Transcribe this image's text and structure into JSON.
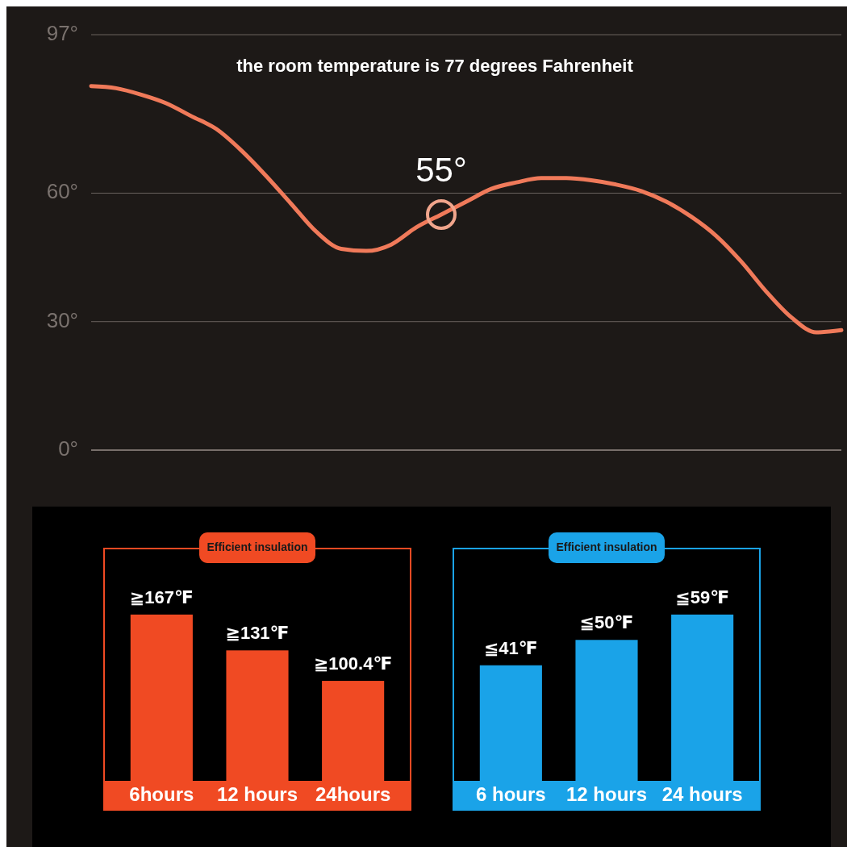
{
  "chart_data": [
    {
      "type": "line",
      "title": "the room temperature is 77 degrees Fahrenheit",
      "categories": [
        null,
        null,
        null,
        null,
        null,
        null,
        null,
        null,
        null,
        null,
        null,
        null,
        null,
        null,
        null,
        null,
        null,
        null,
        null,
        null,
        null,
        null,
        null,
        null,
        null,
        null,
        null,
        null,
        null,
        null,
        null
      ],
      "series": [
        {
          "color": "#f07a5a",
          "values": [
            85,
            84.5,
            83,
            81,
            78,
            75,
            70,
            64,
            57.5,
            51,
            47,
            46.5,
            48,
            52,
            55,
            58,
            61,
            62.5,
            63.5,
            63.5,
            63,
            62,
            60.5,
            58,
            54.5,
            50,
            44,
            37,
            31,
            27.5,
            28
          ]
        }
      ],
      "ylim": [
        0,
        97
      ],
      "yticks": [
        {
          "value": 0,
          "label": "0°"
        },
        {
          "value": 30,
          "label": "30°"
        },
        {
          "value": 60,
          "label": "60°"
        },
        {
          "value": 97,
          "label": "97°"
        }
      ],
      "grid": "y",
      "tick_labels": "y",
      "marker": "none",
      "annotations": [
        {
          "text": "55°",
          "y": 55
        }
      ]
    },
    {
      "type": "bar",
      "title": "Efficient insulation",
      "categories": [
        "6hours",
        "12 hours",
        "24hours"
      ],
      "values": [
        167,
        131,
        100.4
      ],
      "color": "#f04a23",
      "value_labels": [
        "≧167℉",
        "≧131℉",
        "≧100.4℉"
      ]
    },
    {
      "type": "bar",
      "title": "Efficient insulation",
      "categories": [
        "6 hours",
        "12 hours",
        "24 hours"
      ],
      "values": [
        41,
        50,
        59
      ],
      "color": "#1aa3e8",
      "value_labels": [
        "≦41℉",
        "≦50℉",
        "≦59℉"
      ]
    }
  ]
}
